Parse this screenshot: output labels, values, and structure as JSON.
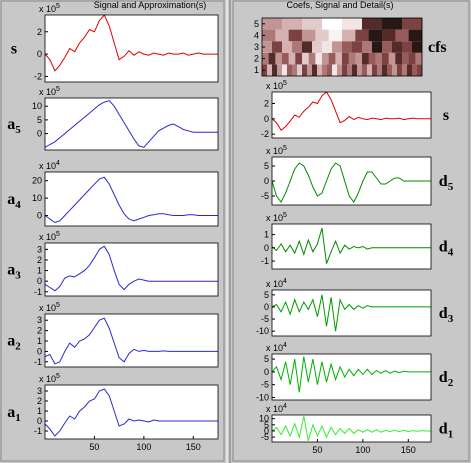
{
  "window": {
    "left_title": "Signal and Approximation(s)",
    "right_title": "Coefs, Signal and Detail(s)"
  },
  "chart_data": [
    {
      "type": "line",
      "ylabel": "s",
      "scale_base": "x 10",
      "scale_power": "5",
      "color": "#e00000",
      "x": [
        0,
        5,
        10,
        15,
        20,
        25,
        30,
        35,
        40,
        45,
        50,
        55,
        60,
        65,
        70,
        75,
        80,
        85,
        90,
        95,
        100,
        105,
        110,
        115,
        120,
        125,
        130,
        135,
        140,
        145,
        150,
        155,
        160,
        165,
        170,
        175
      ],
      "values": [
        0,
        -0.5,
        -1.5,
        -1,
        -0.3,
        0.5,
        0.2,
        1,
        1.5,
        2.2,
        2,
        3,
        3.5,
        2.5,
        1,
        -0.5,
        -0.2,
        0.3,
        -0.1,
        0.2,
        0,
        -0.1,
        0.1,
        0,
        -0.1,
        0.1,
        0,
        0,
        0.1,
        -0.1,
        0,
        0.1,
        0,
        0,
        0,
        0
      ],
      "xlim": [
        0,
        175
      ],
      "ylim": [
        -2.5,
        3.5
      ],
      "yticks": [
        -2,
        0,
        2
      ]
    },
    {
      "type": "line",
      "ylabel": "a",
      "ylabel_sub": "5",
      "scale_base": "x 10",
      "scale_power": "5",
      "color": "#2a2ad0",
      "x": [
        0,
        5,
        10,
        15,
        20,
        25,
        30,
        35,
        40,
        45,
        50,
        55,
        60,
        65,
        70,
        75,
        80,
        85,
        90,
        95,
        100,
        105,
        110,
        115,
        120,
        125,
        130,
        135,
        140,
        145,
        150,
        155,
        160,
        165,
        170,
        175
      ],
      "values": [
        -5,
        -4,
        -3,
        -1.5,
        0,
        1.5,
        3,
        4.5,
        6,
        7.5,
        9,
        10.5,
        11.5,
        12,
        10,
        7,
        4,
        1,
        -2,
        -4.5,
        -5,
        -3,
        -1,
        1,
        2,
        3,
        3.5,
        2.5,
        1.5,
        1,
        0.5,
        0.5,
        0.5,
        0.5,
        0.5,
        0.5
      ],
      "xlim": [
        0,
        175
      ],
      "ylim": [
        -6,
        13
      ],
      "yticks": [
        0,
        5,
        10
      ]
    },
    {
      "type": "line",
      "ylabel": "a",
      "ylabel_sub": "4",
      "scale_base": "x 10",
      "scale_power": "4",
      "color": "#2a2ad0",
      "x": [
        0,
        5,
        10,
        15,
        20,
        25,
        30,
        35,
        40,
        45,
        50,
        55,
        60,
        65,
        70,
        75,
        80,
        85,
        90,
        95,
        100,
        105,
        110,
        115,
        120,
        125,
        130,
        135,
        140,
        145,
        150,
        155,
        160,
        165,
        170,
        175
      ],
      "values": [
        0,
        -2,
        -4,
        -3,
        0,
        3,
        6,
        9,
        12,
        15,
        18,
        21,
        22,
        18,
        12,
        6,
        1,
        -2,
        -3,
        -2,
        -1,
        0,
        0.5,
        1,
        1,
        0.5,
        0,
        0,
        0,
        0.5,
        0.5,
        0,
        0,
        0,
        0,
        0
      ],
      "xlim": [
        0,
        175
      ],
      "ylim": [
        -6,
        25
      ],
      "yticks": [
        0,
        10,
        20
      ]
    },
    {
      "type": "line",
      "ylabel": "a",
      "ylabel_sub": "3",
      "scale_base": "x 10",
      "scale_power": "5",
      "color": "#2a2ad0",
      "x": [
        0,
        5,
        10,
        15,
        20,
        25,
        30,
        35,
        40,
        45,
        50,
        55,
        60,
        65,
        70,
        75,
        80,
        85,
        90,
        95,
        100,
        105,
        110,
        115,
        120,
        125,
        130,
        135,
        140,
        145,
        150,
        155,
        160,
        165,
        170,
        175
      ],
      "values": [
        -0.3,
        -0.6,
        -0.9,
        -0.5,
        0.3,
        0.5,
        0.4,
        0.7,
        1,
        1.5,
        2.2,
        3,
        3.3,
        2.5,
        1,
        -0.3,
        -0.8,
        -0.3,
        0,
        0.2,
        0.1,
        0,
        0,
        0,
        0,
        0,
        0,
        0,
        0,
        0,
        0,
        0,
        0,
        0,
        0,
        0
      ],
      "xlim": [
        0,
        175
      ],
      "ylim": [
        -1.4,
        3.6
      ],
      "yticks": [
        -1,
        0,
        1,
        2,
        3
      ]
    },
    {
      "type": "line",
      "ylabel": "a",
      "ylabel_sub": "2",
      "scale_base": "x 10",
      "scale_power": "5",
      "color": "#2a2ad0",
      "x": [
        0,
        5,
        10,
        15,
        20,
        25,
        30,
        35,
        40,
        45,
        50,
        55,
        60,
        65,
        70,
        75,
        80,
        85,
        90,
        95,
        100,
        105,
        110,
        115,
        120,
        125,
        130,
        135,
        140,
        145,
        150,
        155,
        160,
        165,
        170,
        175
      ],
      "values": [
        -0.5,
        -0.3,
        -1.2,
        -1,
        0,
        0.8,
        0.4,
        1,
        1.2,
        1.6,
        2.3,
        3,
        3.2,
        2.2,
        0.8,
        -0.6,
        -1,
        -0.2,
        0.2,
        0,
        0.1,
        0,
        0,
        0,
        0.05,
        0,
        0,
        0,
        0,
        0,
        0,
        0,
        0,
        0,
        0,
        0
      ],
      "xlim": [
        0,
        175
      ],
      "ylim": [
        -1.5,
        3.6
      ],
      "yticks": [
        -1,
        0,
        1,
        2,
        3
      ]
    },
    {
      "type": "line",
      "ylabel": "a",
      "ylabel_sub": "1",
      "scale_base": "x 10",
      "scale_power": "5",
      "color": "#2a2ad0",
      "x": [
        0,
        5,
        10,
        15,
        20,
        25,
        30,
        35,
        40,
        45,
        50,
        55,
        60,
        65,
        70,
        75,
        80,
        85,
        90,
        95,
        100,
        105,
        110,
        115,
        120,
        125,
        130,
        135,
        140,
        145,
        150,
        155,
        160,
        165,
        170,
        175
      ],
      "values": [
        -0.3,
        -0.8,
        -1.5,
        -1,
        -0.2,
        0.5,
        0.2,
        1,
        1.4,
        2,
        2.2,
        3,
        3.2,
        2.5,
        1,
        -0.5,
        -0.3,
        0.2,
        0,
        0.1,
        0,
        -0.1,
        0.1,
        0,
        0,
        0,
        0,
        0,
        0,
        0,
        0,
        0,
        0,
        0,
        0,
        0
      ],
      "xlim": [
        0,
        175
      ],
      "xticks": [
        50,
        100,
        150
      ],
      "ylim": [
        -1.8,
        3.6
      ],
      "yticks": [
        -1,
        0,
        1,
        2,
        3
      ]
    },
    {
      "type": "heatmap",
      "ylabel": "cfs",
      "colormap": [
        "#000000",
        "#8a4848",
        "#d0a8a8",
        "#ffffff"
      ],
      "z": [
        [
          0.3,
          0.7,
          0.2,
          0.6,
          0.9,
          0.4,
          0.5,
          0.8,
          0.3,
          0.6,
          0.2,
          0.7,
          0.5,
          0.4,
          0.9,
          0.6,
          0.3,
          0.5,
          0.2,
          0.6,
          0.4,
          0.7,
          0.3,
          0.5,
          0.2,
          0.4,
          0.6,
          0.3,
          0.5,
          0.2,
          0.4,
          0.3
        ],
        [
          0.5,
          0.2,
          0.6,
          0.4,
          0.7,
          0.3,
          0.8,
          0.5,
          0.9,
          0.6,
          0.4,
          0.7,
          0.3,
          0.5,
          0.6,
          0.2,
          0.4,
          0.5,
          0.3,
          0.6,
          0.2,
          0.4,
          0.3,
          0.5
        ],
        [
          0.6,
          0.3,
          0.7,
          0.5,
          0.2,
          0.8,
          0.9,
          0.6,
          0.4,
          0.3,
          0.5,
          0.1,
          0.4,
          0.2,
          0.3,
          0.1
        ],
        [
          0.5,
          0.7,
          0.3,
          0.6,
          0.8,
          0.95,
          0.7,
          0.3,
          0.1,
          0.2,
          0.4,
          0.1
        ],
        [
          0.6,
          0.7,
          0.8,
          1,
          0.9,
          0.2,
          0.1,
          0.3
        ]
      ],
      "ylim": [
        0.5,
        5.5
      ],
      "yticks": [
        1,
        2,
        3,
        4,
        5
      ]
    },
    {
      "type": "line",
      "ylabel": "s",
      "scale_base": "x 10",
      "scale_power": "5",
      "color": "#e00000",
      "x": [
        0,
        5,
        10,
        15,
        20,
        25,
        30,
        35,
        40,
        45,
        50,
        55,
        60,
        65,
        70,
        75,
        80,
        85,
        90,
        95,
        100,
        105,
        110,
        115,
        120,
        125,
        130,
        135,
        140,
        145,
        150,
        155,
        160,
        165,
        170,
        175
      ],
      "values": [
        0,
        -0.5,
        -1.5,
        -1,
        -0.3,
        0.5,
        0.2,
        1,
        1.5,
        2.2,
        2,
        3,
        3.5,
        2.5,
        1,
        -0.5,
        -0.2,
        0.3,
        -0.1,
        0.2,
        0,
        -0.1,
        0.1,
        0,
        -0.1,
        0.1,
        0,
        0,
        0.1,
        -0.1,
        0,
        0.1,
        0,
        0,
        0,
        0
      ],
      "xlim": [
        0,
        175
      ],
      "ylim": [
        -2.5,
        3.5
      ],
      "yticks": [
        -2,
        0,
        2
      ]
    },
    {
      "type": "line",
      "ylabel": "d",
      "ylabel_sub": "5",
      "scale_base": "x 10",
      "scale_power": "5",
      "color": "#008a00",
      "x": [
        0,
        5,
        10,
        15,
        20,
        25,
        30,
        35,
        40,
        45,
        50,
        55,
        60,
        65,
        70,
        75,
        80,
        85,
        90,
        95,
        100,
        105,
        110,
        115,
        120,
        125,
        130,
        135,
        140,
        145,
        150,
        155,
        160,
        165,
        170,
        175
      ],
      "values": [
        0,
        -5,
        -7,
        -4,
        0,
        4,
        6,
        5,
        2,
        -2,
        -5,
        -4,
        0,
        4,
        6,
        5,
        0,
        -5,
        -7,
        -4,
        0,
        3,
        3,
        1,
        -1,
        -1,
        0,
        1,
        1,
        0,
        0,
        0,
        0,
        0,
        0,
        0
      ],
      "xlim": [
        0,
        175
      ],
      "ylim": [
        -8,
        8
      ],
      "yticks": [
        -5,
        0,
        5
      ]
    },
    {
      "type": "line",
      "ylabel": "d",
      "ylabel_sub": "4",
      "scale_base": "x 10",
      "scale_power": "5",
      "color": "#008a00",
      "x": [
        0,
        5,
        10,
        15,
        20,
        25,
        30,
        35,
        40,
        45,
        50,
        55,
        60,
        65,
        70,
        75,
        80,
        85,
        90,
        95,
        100,
        105,
        110,
        115,
        120,
        125,
        130,
        135,
        140,
        145,
        150,
        155,
        160,
        165,
        170,
        175
      ],
      "values": [
        0.1,
        -0.2,
        0.3,
        -0.3,
        0.2,
        -0.4,
        0.5,
        -0.5,
        0.6,
        -0.3,
        0.3,
        1.5,
        -1.2,
        -0.3,
        0.5,
        -0.4,
        0.2,
        -0.1,
        0.1,
        0,
        0.1,
        -0.1,
        0,
        0,
        0,
        0,
        0,
        0,
        0,
        0,
        0,
        0,
        0,
        0,
        0,
        0
      ],
      "xlim": [
        0,
        175
      ],
      "ylim": [
        -1.6,
        1.8
      ],
      "yticks": [
        -1,
        0,
        1
      ]
    },
    {
      "type": "line",
      "ylabel": "d",
      "ylabel_sub": "3",
      "scale_base": "x 10",
      "scale_power": "4",
      "color": "#009a00",
      "x": [
        0,
        5,
        10,
        15,
        20,
        25,
        30,
        35,
        40,
        45,
        50,
        55,
        60,
        65,
        70,
        75,
        80,
        85,
        90,
        95,
        100,
        105,
        110,
        115,
        120,
        125,
        130,
        135,
        140,
        145,
        150,
        155,
        160,
        165,
        170,
        175
      ],
      "values": [
        0,
        1,
        -2,
        2,
        -3,
        3,
        -2,
        2,
        -1,
        3,
        -4,
        5,
        -8,
        4,
        -10,
        3,
        -1,
        1,
        -1,
        0.5,
        -0.5,
        0.5,
        0,
        0,
        0,
        0,
        0,
        0,
        0,
        0,
        0,
        0,
        0,
        0,
        0,
        0
      ],
      "xlim": [
        0,
        175
      ],
      "ylim": [
        -12,
        7
      ],
      "yticks": [
        -10,
        -5,
        0,
        5
      ]
    },
    {
      "type": "line",
      "ylabel": "d",
      "ylabel_sub": "2",
      "scale_base": "x 10",
      "scale_power": "4",
      "color": "#00b000",
      "x": [
        0,
        5,
        10,
        15,
        20,
        25,
        30,
        35,
        40,
        45,
        50,
        55,
        60,
        65,
        70,
        75,
        80,
        85,
        90,
        95,
        100,
        105,
        110,
        115,
        120,
        125,
        130,
        135,
        140,
        145,
        150,
        155,
        160,
        165,
        170,
        175
      ],
      "values": [
        0,
        2,
        -3,
        4,
        -5,
        5,
        -8,
        6,
        -4,
        5,
        -5,
        4,
        -4,
        3,
        -3,
        2,
        -2,
        1,
        -1.5,
        1,
        -1,
        1,
        -1,
        0.5,
        -0.5,
        0.5,
        -0.5,
        0.3,
        -0.3,
        0.3,
        0,
        0,
        0,
        0,
        0,
        0
      ],
      "xlim": [
        0,
        175
      ],
      "ylim": [
        -11,
        7
      ],
      "yticks": [
        -10,
        -5,
        0,
        5
      ]
    },
    {
      "type": "line",
      "ylabel": "d",
      "ylabel_sub": "1",
      "scale_base": "x 10",
      "scale_power": "4",
      "color": "#33ee33",
      "x": [
        0,
        5,
        10,
        15,
        20,
        25,
        30,
        35,
        40,
        45,
        50,
        55,
        60,
        65,
        70,
        75,
        80,
        85,
        90,
        95,
        100,
        105,
        110,
        115,
        120,
        125,
        130,
        135,
        140,
        145,
        150,
        155,
        160,
        165,
        170,
        175
      ],
      "values": [
        0,
        3,
        -3,
        4,
        -4,
        6,
        -5,
        12,
        -8,
        5,
        -4,
        4,
        -5,
        3,
        -3,
        2,
        -2,
        2,
        -2,
        1,
        -1,
        1,
        -1,
        1,
        -1,
        0.5,
        -0.5,
        0.5,
        -0.5,
        0.5,
        -0.5,
        0.3,
        -0.3,
        0.3,
        0,
        0
      ],
      "xlim": [
        0,
        175
      ],
      "xticks": [
        50,
        100,
        150
      ],
      "ylim": [
        -9,
        13
      ],
      "yticks": [
        -5,
        0,
        5,
        10
      ]
    }
  ]
}
